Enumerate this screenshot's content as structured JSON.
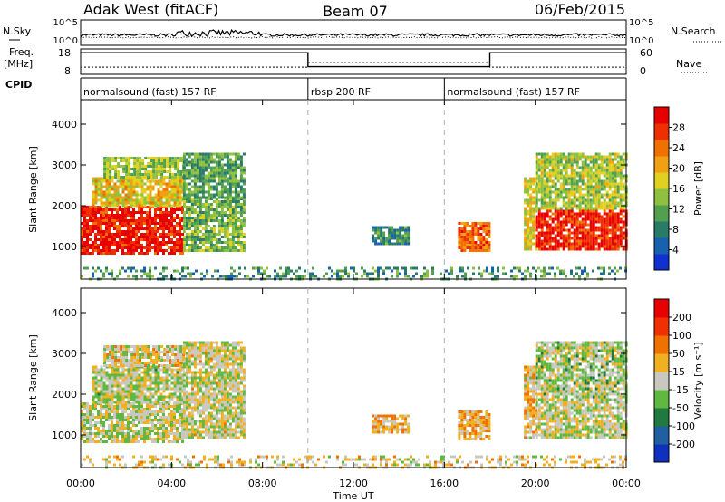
{
  "header": {
    "station": "Adak West (fitACF)",
    "beam": "Beam 07",
    "date": "06/Feb/2015"
  },
  "top_panels": {
    "nsky_label": "N.Sky",
    "nsearch_label": "N.Search",
    "noise_ticks": [
      "10^5",
      "10^0"
    ],
    "freq_label": "Freq.",
    "freq_unit": "[MHz]",
    "freq_ticks": [
      "18",
      "8"
    ],
    "nave_label": "Nave",
    "nave_ticks": [
      "60",
      "0"
    ],
    "cpid_label": "CPID"
  },
  "cpid_segments": [
    {
      "label": "normalsound (fast) 157 RF",
      "start_hour": 0,
      "end_hour": 10
    },
    {
      "label": "rbsp 200 RF",
      "start_hour": 10,
      "end_hour": 16
    },
    {
      "label": "normalsound (fast) 157 RF",
      "start_hour": 16,
      "end_hour": 24
    }
  ],
  "colors": {
    "ground_scatter": "#c8c8c0",
    "frame": "#000000",
    "divider": "#b0b0b0"
  },
  "chart_data": [
    {
      "type": "heatmap",
      "panel": "power",
      "ylabel": "Slant Range [km]",
      "xlabel": "",
      "xlim": [
        0,
        24
      ],
      "ylim": [
        200,
        4600
      ],
      "yticks": [
        "1000",
        "2000",
        "3000",
        "4000"
      ],
      "xticks": [
        "00:00",
        "04:00",
        "08:00",
        "12:00",
        "16:00",
        "20:00",
        "00:00"
      ],
      "colorbar": {
        "label": "Power [dB]",
        "ticks": [
          "4",
          "8",
          "12",
          "16",
          "20",
          "24",
          "28"
        ],
        "colors": [
          "#1030d0",
          "#1860b0",
          "#2a7a68",
          "#50a050",
          "#90c040",
          "#e0d020",
          "#f0a010",
          "#f07000",
          "#ee3000",
          "#e80000"
        ]
      },
      "regions": [
        {
          "t0": 0.0,
          "t1": 4.5,
          "r0": 800,
          "r1": 2000,
          "level": 0.92
        },
        {
          "t0": 0.5,
          "t1": 4.5,
          "r0": 2000,
          "r1": 2700,
          "level": 0.58
        },
        {
          "t0": 1.0,
          "t1": 4.5,
          "r0": 2700,
          "r1": 3200,
          "level": 0.45
        },
        {
          "t0": 4.5,
          "t1": 7.2,
          "r0": 900,
          "r1": 2200,
          "level": 0.4
        },
        {
          "t0": 4.5,
          "t1": 7.2,
          "r0": 2200,
          "r1": 3300,
          "level": 0.35
        },
        {
          "t0": 12.8,
          "t1": 14.4,
          "r0": 1050,
          "r1": 1500,
          "level": 0.28
        },
        {
          "t0": 16.6,
          "t1": 18.0,
          "r0": 900,
          "r1": 1600,
          "level": 0.78
        },
        {
          "t0": 19.5,
          "t1": 20.0,
          "r0": 900,
          "r1": 2700,
          "level": 0.55
        },
        {
          "t0": 20.0,
          "t1": 24.0,
          "r0": 900,
          "r1": 1900,
          "level": 0.9
        },
        {
          "t0": 20.0,
          "t1": 24.0,
          "r0": 1900,
          "r1": 3300,
          "level": 0.48
        },
        {
          "t0": 0.0,
          "t1": 24.0,
          "r0": 200,
          "r1": 500,
          "level": 0.3
        }
      ]
    },
    {
      "type": "heatmap",
      "panel": "velocity",
      "ylabel": "Slant Range [km]",
      "xlabel": "Time UT",
      "xlim": [
        0,
        24
      ],
      "ylim": [
        200,
        4600
      ],
      "yticks": [
        "1000",
        "2000",
        "3000",
        "4000"
      ],
      "xticks": [
        "00:00",
        "04:00",
        "08:00",
        "12:00",
        "16:00",
        "20:00",
        "00:00"
      ],
      "colorbar": {
        "label": "Velocity [m s⁻¹]",
        "ticks": [
          "200",
          "100",
          "50",
          "15",
          "-15",
          "-50",
          "-100",
          "-200"
        ],
        "colors": [
          "#1030c0",
          "#2060a0",
          "#207a40",
          "#60b840",
          "#c8c8c0",
          "#f0b020",
          "#f07000",
          "#f03000",
          "#e80000"
        ]
      },
      "regions": [
        {
          "t0": 0.0,
          "t1": 4.5,
          "r0": 800,
          "r1": 1800,
          "level": 0.5
        },
        {
          "t0": 0.5,
          "t1": 4.5,
          "r0": 1800,
          "r1": 2700,
          "level": 0.48
        },
        {
          "t0": 1.0,
          "t1": 4.5,
          "r0": 2700,
          "r1": 3200,
          "level": 0.55
        },
        {
          "t0": 4.5,
          "t1": 7.2,
          "r0": 900,
          "r1": 3300,
          "level": 0.52
        },
        {
          "t0": 12.8,
          "t1": 14.4,
          "r0": 1050,
          "r1": 1500,
          "level": 0.62
        },
        {
          "t0": 16.6,
          "t1": 18.0,
          "r0": 900,
          "r1": 1600,
          "level": 0.62
        },
        {
          "t0": 19.5,
          "t1": 20.0,
          "r0": 900,
          "r1": 2700,
          "level": 0.58
        },
        {
          "t0": 20.0,
          "t1": 24.0,
          "r0": 900,
          "r1": 1900,
          "level": 0.5
        },
        {
          "t0": 20.0,
          "t1": 24.0,
          "r0": 1900,
          "r1": 3300,
          "level": 0.46
        },
        {
          "t0": 0.0,
          "t1": 24.0,
          "r0": 200,
          "r1": 500,
          "level": 0.55
        }
      ]
    }
  ]
}
